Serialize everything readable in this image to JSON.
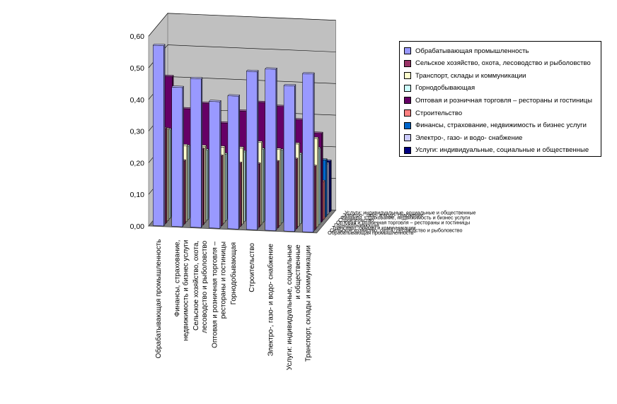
{
  "chart_data": {
    "type": "bar",
    "subtype": "3d-column",
    "title": "",
    "xlabel": "",
    "ylabel": "",
    "ylim": [
      0,
      0.6
    ],
    "y_ticks": [
      "0,00",
      "0,10",
      "0,20",
      "0,30",
      "0,40",
      "0,50",
      "0,60"
    ],
    "grid": true,
    "legend_position": "right",
    "categories": [
      "Обрабатывающая промышленность",
      "Финансы, страхование, недвижимость и бизнес услуги",
      "Сельское хозяйство, охота, лесоводство и рыболовство",
      "Оптовая и розничная торговля – рестораны и гостиницы",
      "Горнодобывающая",
      "Строительство",
      "Электро-, газо- и водо- снабжение",
      "Услуги: индивидуальные, социальные и общественные",
      "Транспорт, склады и коммуникации"
    ],
    "category_labels": [
      [
        "Обрабатывающая промышленность"
      ],
      [
        "Финансы, страхование,",
        "недвижимость и бизнес услуги"
      ],
      [
        "Сельское хозяйство, охота,",
        "лесоводство и рыболовство"
      ],
      [
        "Оптовая и розничная торговля –",
        "рестораны и гостиницы"
      ],
      [
        "Горнодобывающая"
      ],
      [
        "Строительство"
      ],
      [
        "Электро-, газо- и водо- снабжение"
      ],
      [
        "Услуги: индивидуальные, социальные",
        "и общественные"
      ],
      [
        "Транспорт, склады и коммуникации"
      ]
    ],
    "depth_labels": [
      "Обрабатывающая промышленность",
      "Сельское хозяйство, охота, лесоводство и рыболовство",
      "Транспорт, склады и коммуникации",
      "Горнодобывающая",
      "Оптовая и розничная торговля – рестораны и гостиницы",
      "Строительство",
      "Финансы, страхование, недвижимость и бизнес услуги",
      "Электро-, газо- и водо- снабжение",
      "Услуги: индивидуальные, социальные и общественные"
    ],
    "series": [
      {
        "name": "Обрабатывающая промышленность",
        "color": "#9999FF",
        "values": [
          0.57,
          0.44,
          0.47,
          0.4,
          0.42,
          0.5,
          0.51,
          0.46,
          0.5
        ]
      },
      {
        "name": "Сельское хозяйство, охота, лесоводство и рыболовство",
        "color": "#993366",
        "values": [
          0.3,
          0.2,
          0.24,
          0.22,
          0.2,
          0.2,
          0.21,
          0.22,
          0.2
        ]
      },
      {
        "name": "Транспорт, склады и коммуникации",
        "color": "#FFFFCC",
        "values": [
          0.29,
          0.24,
          0.24,
          0.24,
          0.24,
          0.26,
          0.24,
          0.26,
          0.28
        ]
      },
      {
        "name": "Горнодобывающая",
        "color": "#CCFFFF",
        "values": [
          0.28,
          0.23,
          0.22,
          0.21,
          0.22,
          0.23,
          0.23,
          0.22,
          0.24
        ]
      },
      {
        "name": "Оптовая и розничная торговля – рестораны и гостиницы",
        "color": "#660066",
        "values": [
          0.44,
          0.34,
          0.36,
          0.3,
          0.34,
          0.37,
          0.36,
          0.32,
          0.28
        ]
      },
      {
        "name": "Строительство",
        "color": "#FF8080",
        "values": [
          0.23,
          0.17,
          0.13,
          0.11,
          0.14,
          0.18,
          0.17,
          0.14,
          0.12
        ]
      },
      {
        "name": "Финансы, страхование, недвижимость и бизнес услуги",
        "color": "#0066CC",
        "values": [
          0.22,
          0.21,
          0.2,
          0.19,
          0.18,
          0.22,
          0.22,
          0.2,
          0.18
        ]
      },
      {
        "name": "Электро-, газо- и водо- снабжение",
        "color": "#CCCCFF",
        "values": [
          0.24,
          0.19,
          0.2,
          0.17,
          0.18,
          0.2,
          0.2,
          0.18,
          0.16
        ]
      },
      {
        "name": "Услуги: индивидуальные, социальные и общественные",
        "color": "#000080",
        "values": [
          0.2,
          0.17,
          0.17,
          0.16,
          0.17,
          0.19,
          0.18,
          0.16,
          0.16
        ]
      }
    ]
  }
}
